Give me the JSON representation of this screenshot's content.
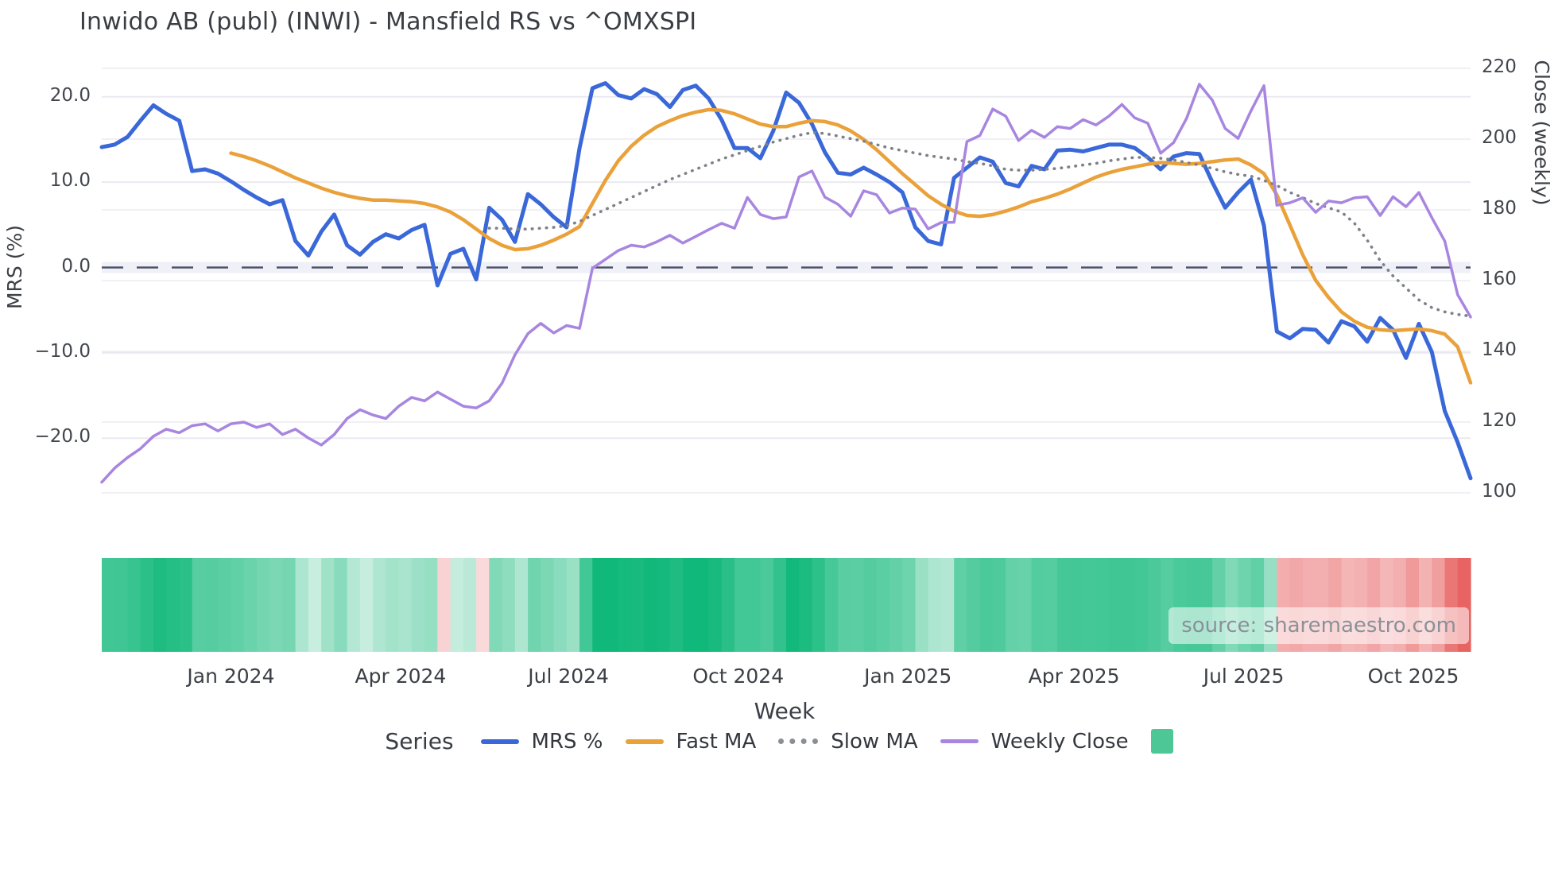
{
  "title": "Inwido AB (publ) (INWI) - Mansfield RS vs ^OMXSPI",
  "source_label": "source: sharemaestro.com",
  "legend": {
    "title": "Series",
    "entries": [
      {
        "label": "MRS %",
        "color": "#3a68d8",
        "style": "solid"
      },
      {
        "label": "Fast MA",
        "color": "#eaa13a",
        "style": "solid"
      },
      {
        "label": "Slow MA",
        "color": "#8a8f96",
        "style": "dotted"
      },
      {
        "label": "Weekly Close",
        "color": "#a886e0",
        "style": "solid"
      }
    ],
    "heatmap_swatch_color": "#4dc795"
  },
  "chart_data": {
    "type": "line",
    "title": "Inwido AB (publ) (INWI) - Mansfield RS vs ^OMXSPI",
    "xlabel": "Week",
    "ylabel_left": "MRS (%)",
    "ylabel_right": "Close (weekly)",
    "grid": true,
    "legend_position": "bottom",
    "x_weeks_total": 107,
    "y_left": {
      "ticks": [
        20,
        10,
        0,
        -10,
        -20
      ],
      "tick_labels": [
        "20.0",
        "10.0",
        "0.0",
        "−10.0",
        "−20.0"
      ],
      "range": [
        -27,
        23
      ]
    },
    "y_right": {
      "ticks": [
        220,
        200,
        180,
        160,
        140,
        120,
        100
      ],
      "tick_labels": [
        "220",
        "200",
        "180",
        "160",
        "140",
        "120",
        "100"
      ],
      "range": [
        98,
        222
      ]
    },
    "x_ticks": [
      {
        "label": "Jan 2024",
        "week": 10.0
      },
      {
        "label": "Apr 2024",
        "week": 23.14
      },
      {
        "label": "Jul 2024",
        "week": 36.14
      },
      {
        "label": "Oct 2024",
        "week": 49.29
      },
      {
        "label": "Jan 2025",
        "week": 62.43
      },
      {
        "label": "Apr 2025",
        "week": 75.29
      },
      {
        "label": "Jul 2025",
        "week": 88.43
      },
      {
        "label": "Oct 2025",
        "week": 101.57
      }
    ],
    "zero_line": {
      "value": 0,
      "axis": "left",
      "style": "dashed",
      "color": "#4d5468"
    },
    "series": [
      {
        "name": "MRS %",
        "axis": "left",
        "color": "#3a68d8",
        "width": 5,
        "style": "solid",
        "values": [
          14.1,
          14.4,
          15.3,
          17.2,
          19.0,
          18.0,
          17.2,
          11.3,
          11.5,
          11.0,
          10.1,
          9.1,
          8.2,
          7.4,
          7.9,
          3.1,
          1.4,
          4.2,
          6.2,
          2.6,
          1.5,
          3.0,
          3.9,
          3.4,
          4.4,
          5.0,
          -2.1,
          1.6,
          2.2,
          -1.4,
          7.0,
          5.6,
          3.0,
          8.6,
          7.4,
          5.9,
          4.7,
          14.0,
          21.0,
          21.6,
          20.2,
          19.8,
          20.9,
          20.3,
          18.8,
          20.8,
          21.3,
          19.8,
          17.3,
          14.0,
          14.0,
          12.8,
          16.0,
          20.5,
          19.3,
          16.8,
          13.5,
          11.1,
          10.9,
          11.7,
          10.9,
          10.0,
          8.8,
          4.7,
          3.1,
          2.7,
          10.5,
          11.7,
          12.9,
          12.4,
          9.9,
          9.5,
          11.9,
          11.5,
          13.7,
          13.8,
          13.6,
          14.0,
          14.4,
          14.4,
          14.0,
          12.9,
          11.5,
          13.0,
          13.4,
          13.3,
          10.0,
          7.0,
          8.8,
          10.3,
          4.9,
          -7.5,
          -8.3,
          -7.2,
          -7.3,
          -8.8,
          -6.3,
          -6.9,
          -8.7,
          -5.9,
          -7.3,
          -10.6,
          -6.6,
          -9.9,
          -16.8,
          -20.5,
          -24.7
        ]
      },
      {
        "name": "Fast MA",
        "axis": "left",
        "color": "#eaa13a",
        "width": 4.5,
        "style": "solid",
        "values": [
          null,
          null,
          null,
          null,
          null,
          null,
          null,
          null,
          null,
          null,
          13.4,
          13.0,
          12.5,
          11.9,
          11.2,
          10.5,
          9.9,
          9.3,
          8.8,
          8.4,
          8.1,
          7.9,
          7.9,
          7.8,
          7.7,
          7.5,
          7.1,
          6.5,
          5.6,
          4.5,
          3.4,
          2.6,
          2.1,
          2.2,
          2.6,
          3.2,
          3.9,
          4.8,
          7.5,
          10.2,
          12.5,
          14.2,
          15.5,
          16.5,
          17.2,
          17.8,
          18.2,
          18.5,
          18.4,
          18.0,
          17.4,
          16.8,
          16.5,
          16.5,
          16.9,
          17.2,
          17.1,
          16.7,
          16.0,
          15.0,
          13.8,
          12.4,
          11.0,
          9.7,
          8.4,
          7.4,
          6.6,
          6.1,
          6.0,
          6.2,
          6.6,
          7.1,
          7.7,
          8.1,
          8.6,
          9.2,
          9.9,
          10.6,
          11.1,
          11.5,
          11.8,
          12.1,
          12.3,
          12.2,
          12.1,
          12.2,
          12.4,
          12.6,
          12.7,
          12.0,
          11.0,
          8.5,
          5.0,
          1.5,
          -1.5,
          -3.5,
          -5.2,
          -6.3,
          -7.0,
          -7.3,
          -7.4,
          -7.3,
          -7.2,
          -7.4,
          -7.8,
          -9.3,
          -13.5
        ]
      },
      {
        "name": "Slow MA",
        "axis": "left",
        "color": "#7e8288",
        "width": 3.6,
        "style": "dotted",
        "values": [
          null,
          null,
          null,
          null,
          null,
          null,
          null,
          null,
          null,
          null,
          null,
          null,
          null,
          null,
          null,
          null,
          null,
          null,
          null,
          null,
          null,
          null,
          null,
          null,
          null,
          null,
          null,
          null,
          null,
          null,
          4.6,
          4.6,
          4.5,
          4.5,
          4.6,
          4.7,
          4.9,
          5.4,
          6.1,
          6.8,
          7.5,
          8.2,
          8.9,
          9.6,
          10.3,
          10.9,
          11.5,
          12.1,
          12.7,
          13.2,
          13.7,
          14.2,
          14.7,
          15.1,
          15.5,
          15.8,
          15.7,
          15.4,
          15.1,
          14.8,
          14.4,
          14.0,
          13.7,
          13.4,
          13.1,
          12.9,
          12.7,
          12.4,
          12.2,
          11.9,
          11.5,
          11.4,
          11.4,
          11.5,
          11.6,
          11.8,
          12.0,
          12.2,
          12.5,
          12.7,
          12.9,
          12.9,
          12.8,
          12.6,
          12.3,
          12.0,
          11.6,
          11.2,
          10.9,
          10.7,
          10.2,
          9.6,
          8.8,
          8.2,
          7.5,
          7.0,
          6.5,
          5.2,
          3.2,
          0.8,
          -1.0,
          -2.4,
          -3.8,
          -4.7,
          -5.2,
          -5.5,
          -5.7
        ]
      },
      {
        "name": "Weekly Close",
        "axis": "right",
        "color": "#a886e0",
        "width": 3.5,
        "style": "solid",
        "values": [
          103,
          107,
          110,
          112.5,
          116,
          118,
          117,
          119,
          119.5,
          117.5,
          119.5,
          120,
          118.5,
          119.5,
          116.5,
          118,
          115.5,
          113.5,
          116.5,
          121,
          123.5,
          122,
          121,
          124.5,
          127,
          126,
          128.5,
          126.5,
          124.5,
          124,
          126,
          131,
          139,
          145,
          147.9,
          145.2,
          147.3,
          146.5,
          163.5,
          166,
          168.5,
          170,
          169.5,
          171,
          172.8,
          170.6,
          172.5,
          174.4,
          176.2,
          174.8,
          183.5,
          178.7,
          177.5,
          178,
          189.3,
          191,
          183.6,
          181.6,
          178.2,
          185.4,
          184.3,
          179.1,
          180.5,
          180.2,
          174.6,
          176.4,
          176.5,
          199.3,
          201,
          208.5,
          206.5,
          199.6,
          202.5,
          200.5,
          203.5,
          203,
          205.5,
          204,
          206.5,
          209.8,
          206,
          204.5,
          196,
          199,
          205.8,
          215.5,
          211,
          203,
          200.2,
          208,
          215.1,
          181.3,
          182,
          183.4,
          179.3,
          182.5,
          182,
          183.4,
          183.7,
          178.4,
          183.7,
          180.9,
          184.9,
          177.8,
          171.2,
          156.0,
          149.7
        ]
      }
    ],
    "heatmap": {
      "description": "weekly strip below chart; color derived from MRS % value: green for positive (darker = higher), pink/red for negative (darker = more negative)",
      "positive_color_max": "#10b87a",
      "positive_color_min": "#f2faf6",
      "negative_color_min": "#fce8ea",
      "negative_color_max": "#e34846"
    }
  }
}
